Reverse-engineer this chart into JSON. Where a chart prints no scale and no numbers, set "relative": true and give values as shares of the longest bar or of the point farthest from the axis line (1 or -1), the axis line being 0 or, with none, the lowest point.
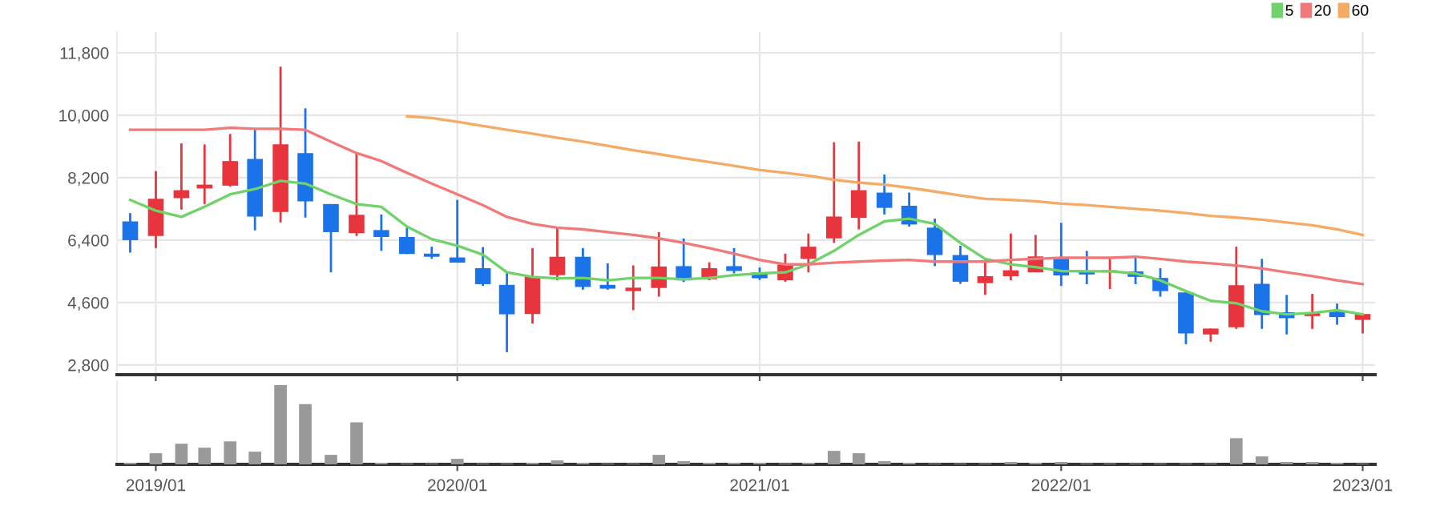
{
  "chart_data": [
    {
      "type": "candlestick",
      "x": [
        "2018-12",
        "2019-01",
        "2019-02",
        "2019-03",
        "2019-04",
        "2019-05",
        "2019-06",
        "2019-07",
        "2019-08",
        "2019-09",
        "2019-10",
        "2019-11",
        "2019-12",
        "2020-01",
        "2020-02",
        "2020-03",
        "2020-04",
        "2020-05",
        "2020-06",
        "2020-07",
        "2020-08",
        "2020-09",
        "2020-10",
        "2020-11",
        "2020-12",
        "2021-01",
        "2021-02",
        "2021-03",
        "2021-04",
        "2021-05",
        "2021-06",
        "2021-07",
        "2021-08",
        "2021-09",
        "2021-10",
        "2021-11",
        "2021-12",
        "2022-01",
        "2022-02",
        "2022-03",
        "2022-04",
        "2022-05",
        "2022-06",
        "2022-07",
        "2022-08",
        "2022-09",
        "2022-10",
        "2022-11",
        "2022-12",
        "2023-01"
      ],
      "ohlc": [
        [
          6940,
          7180,
          6040,
          6400
        ],
        [
          6520,
          8390,
          6170,
          7590
        ],
        [
          7610,
          9190,
          7280,
          7840
        ],
        [
          7890,
          9160,
          7440,
          8000
        ],
        [
          7970,
          9460,
          7940,
          8680
        ],
        [
          8740,
          9580,
          6680,
          7080
        ],
        [
          7210,
          11400,
          6910,
          9160
        ],
        [
          8910,
          10200,
          7050,
          7520
        ],
        [
          7440,
          7440,
          5470,
          6630
        ],
        [
          6600,
          8900,
          6520,
          7130
        ],
        [
          6690,
          7140,
          6090,
          6490
        ],
        [
          6490,
          6760,
          6000,
          6000
        ],
        [
          6010,
          6210,
          5860,
          5920
        ],
        [
          5900,
          7560,
          5750,
          5750
        ],
        [
          5590,
          6200,
          5080,
          5130
        ],
        [
          5110,
          5470,
          3170,
          4260
        ],
        [
          4270,
          6170,
          3990,
          5360
        ],
        [
          5390,
          6760,
          5240,
          5920
        ],
        [
          5920,
          6170,
          4970,
          5050
        ],
        [
          5110,
          5730,
          4970,
          5000
        ],
        [
          4930,
          5670,
          4380,
          5030
        ],
        [
          5020,
          6630,
          4770,
          5640
        ],
        [
          5650,
          6450,
          5190,
          5240
        ],
        [
          5270,
          5760,
          5240,
          5590
        ],
        [
          5650,
          6170,
          5440,
          5510
        ],
        [
          5470,
          5610,
          5250,
          5300
        ],
        [
          5240,
          6010,
          5200,
          5700
        ],
        [
          5860,
          6590,
          5470,
          6210
        ],
        [
          6450,
          9220,
          6320,
          7080
        ],
        [
          7040,
          9240,
          6710,
          7840
        ],
        [
          7770,
          8290,
          7140,
          7330
        ],
        [
          7390,
          7770,
          6790,
          6850
        ],
        [
          6760,
          7020,
          5650,
          5970
        ],
        [
          5970,
          6240,
          5140,
          5200
        ],
        [
          5160,
          5860,
          4820,
          5360
        ],
        [
          5360,
          6590,
          5240,
          5530
        ],
        [
          5470,
          6550,
          5470,
          5930
        ],
        [
          5900,
          6900,
          5080,
          5380
        ],
        [
          5510,
          6090,
          5130,
          5410
        ],
        [
          5470,
          5900,
          4990,
          5530
        ],
        [
          5500,
          5930,
          5130,
          5340
        ],
        [
          5310,
          5590,
          4770,
          4930
        ],
        [
          4890,
          4890,
          3400,
          3710
        ],
        [
          3680,
          3850,
          3470,
          3850
        ],
        [
          3890,
          6210,
          3840,
          5100
        ],
        [
          5140,
          5860,
          3840,
          4240
        ],
        [
          4320,
          4820,
          3680,
          4150
        ],
        [
          4210,
          4850,
          3840,
          4320
        ],
        [
          4340,
          4570,
          3960,
          4180
        ],
        [
          4100,
          4270,
          3710,
          4270
        ]
      ],
      "colors": [
        "#1a73e8",
        "#e8343c",
        "#e8343c",
        "#e8343c",
        "#e8343c",
        "#1a73e8",
        "#e8343c",
        "#1a73e8",
        "#1a73e8",
        "#e8343c",
        "#1a73e8",
        "#1a73e8",
        "#1a73e8",
        "#1a73e8",
        "#1a73e8",
        "#1a73e8",
        "#e8343c",
        "#e8343c",
        "#1a73e8",
        "#1a73e8",
        "#e8343c",
        "#e8343c",
        "#1a73e8",
        "#e8343c",
        "#1a73e8",
        "#1a73e8",
        "#e8343c",
        "#e8343c",
        "#e8343c",
        "#e8343c",
        "#1a73e8",
        "#1a73e8",
        "#1a73e8",
        "#1a73e8",
        "#e8343c",
        "#e8343c",
        "#e8343c",
        "#1a73e8",
        "#1a73e8",
        "#e8343c",
        "#1a73e8",
        "#1a73e8",
        "#1a73e8",
        "#e8343c",
        "#e8343c",
        "#1a73e8",
        "#1a73e8",
        "#e8343c",
        "#1a73e8",
        "#e8343c"
      ],
      "series": [
        {
          "type": "line",
          "name": "5",
          "color": "#6fd36a",
          "values": [
            7560,
            7250,
            7070,
            7360,
            7720,
            7870,
            8110,
            8030,
            7720,
            7440,
            7360,
            6790,
            6430,
            6240,
            5980,
            5470,
            5340,
            5300,
            5310,
            5240,
            5310,
            5310,
            5270,
            5310,
            5390,
            5440,
            5470,
            5700,
            6090,
            6550,
            6940,
            7020,
            6870,
            6320,
            5860,
            5700,
            5620,
            5510,
            5500,
            5500,
            5440,
            5240,
            4930,
            4650,
            4580,
            4350,
            4260,
            4300,
            4380,
            4260
          ]
        },
        {
          "type": "line",
          "name": "20",
          "color": "#f07a7a",
          "values": [
            9580,
            9580,
            9580,
            9580,
            9640,
            9610,
            9610,
            9580,
            9240,
            8910,
            8680,
            8340,
            8030,
            7720,
            7410,
            7070,
            6870,
            6760,
            6710,
            6630,
            6550,
            6450,
            6320,
            6170,
            6010,
            5830,
            5700,
            5700,
            5750,
            5780,
            5810,
            5830,
            5780,
            5780,
            5780,
            5830,
            5860,
            5890,
            5890,
            5890,
            5920,
            5860,
            5780,
            5730,
            5670,
            5580,
            5470,
            5360,
            5240,
            5130
          ]
        },
        {
          "type": "line",
          "name": "60",
          "color": "#f5aa66",
          "values": [
            null,
            null,
            null,
            null,
            null,
            null,
            null,
            null,
            null,
            null,
            null,
            9970,
            9920,
            9810,
            9690,
            9580,
            9470,
            9350,
            9240,
            9120,
            8990,
            8880,
            8760,
            8650,
            8540,
            8420,
            8340,
            8260,
            8140,
            8060,
            8000,
            7910,
            7800,
            7690,
            7590,
            7560,
            7520,
            7450,
            7410,
            7360,
            7300,
            7250,
            7180,
            7100,
            7050,
            6990,
            6910,
            6830,
            6710,
            6550
          ]
        }
      ],
      "xlim": [
        "2018-11-15",
        "2023-01-16"
      ],
      "xticks": [
        {
          "value": "2019-01",
          "label": null
        },
        {
          "value": "2020-01",
          "label": null
        },
        {
          "value": "2021-01",
          "label": null
        },
        {
          "value": "2022-01",
          "label": null
        },
        {
          "value": "2023-01",
          "label": null
        }
      ],
      "ylim": [
        2520,
        12400
      ],
      "yticks": [
        {
          "value": 2800,
          "label": "2,800"
        },
        {
          "value": 4600,
          "label": "4,600"
        },
        {
          "value": 6400,
          "label": "6,400"
        },
        {
          "value": 8200,
          "label": "8,200"
        },
        {
          "value": 10000,
          "label": "10,000"
        },
        {
          "value": 11800,
          "label": "11,800"
        }
      ],
      "grid": true,
      "legend": "top right",
      "tick_labels": "y"
    },
    {
      "type": "bar",
      "relative": true,
      "color": "#999999",
      "x": [
        "2018-12",
        "2019-01",
        "2019-02",
        "2019-03",
        "2019-04",
        "2019-05",
        "2019-06",
        "2019-07",
        "2019-08",
        "2019-09",
        "2019-10",
        "2019-11",
        "2019-12",
        "2020-01",
        "2020-02",
        "2020-03",
        "2020-04",
        "2020-05",
        "2020-06",
        "2020-07",
        "2020-08",
        "2020-09",
        "2020-10",
        "2020-11",
        "2020-12",
        "2021-01",
        "2021-02",
        "2021-03",
        "2021-04",
        "2021-05",
        "2021-06",
        "2021-07",
        "2021-08",
        "2021-09",
        "2021-10",
        "2021-11",
        "2021-12",
        "2022-01",
        "2022-02",
        "2022-03",
        "2022-04",
        "2022-05",
        "2022-06",
        "2022-07",
        "2022-08",
        "2022-09",
        "2022-10",
        "2022-11",
        "2022-12",
        "2023-01"
      ],
      "values": [
        0.02,
        0.14,
        0.26,
        0.21,
        0.29,
        0.16,
        1,
        0.76,
        0.12,
        0.53,
        0.02,
        0.01,
        0.01,
        0.07,
        0.01,
        0.01,
        0.02,
        0.05,
        0.02,
        0.01,
        0.01,
        0.12,
        0.04,
        0.02,
        0.02,
        0.02,
        0.01,
        0.02,
        0.17,
        0.14,
        0.04,
        0.02,
        0.01,
        0.01,
        0.01,
        0.03,
        0.02,
        0.03,
        0.01,
        0.01,
        0.01,
        0.01,
        0.01,
        0.01,
        0.33,
        0.1,
        0.03,
        0.03,
        0.02,
        0.01
      ],
      "xlim": [
        "2018-11-15",
        "2023-01-16"
      ],
      "xticks": [
        {
          "value": "2019-01",
          "label": "2019/01"
        },
        {
          "value": "2020-01",
          "label": "2020/01"
        },
        {
          "value": "2021-01",
          "label": "2021/01"
        },
        {
          "value": "2022-01",
          "label": "2022/01"
        },
        {
          "value": "2023-01",
          "label": "2023/01"
        }
      ],
      "tick_labels": "x"
    }
  ]
}
